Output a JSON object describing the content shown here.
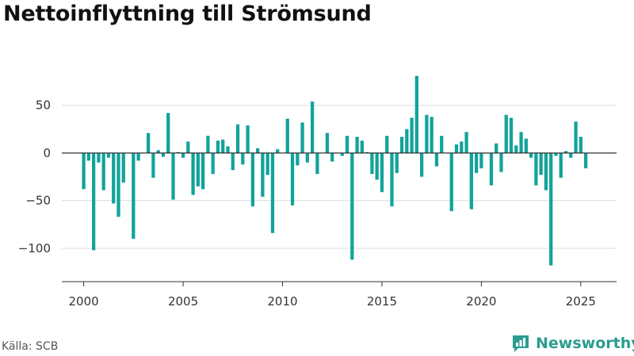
{
  "title": "Nettoinflyttning till Strömsund",
  "source": "Källa: SCB",
  "brand": {
    "name": "Newsworthy",
    "icon": "newsworthy-logo-icon",
    "color": "#2a9d8f"
  },
  "chart_data": {
    "type": "bar",
    "color": "#12a39a",
    "x_ticks": [
      2000,
      2005,
      2010,
      2015,
      2020,
      2025
    ],
    "y_ticks": [
      -100,
      -50,
      0,
      50
    ],
    "y_tick_labels": [
      "−100",
      "−50",
      "0",
      "50"
    ],
    "xlim": [
      1998.9,
      2026.8
    ],
    "ylim": [
      -135,
      90
    ],
    "grid": true,
    "x": [
      2000.0,
      2000.25,
      2000.5,
      2000.75,
      2001.0,
      2001.25,
      2001.5,
      2001.75,
      2002.0,
      2002.25,
      2002.5,
      2002.75,
      2003.0,
      2003.25,
      2003.5,
      2003.75,
      2004.0,
      2004.25,
      2004.5,
      2004.75,
      2005.0,
      2005.25,
      2005.5,
      2005.75,
      2006.0,
      2006.25,
      2006.5,
      2006.75,
      2007.0,
      2007.25,
      2007.5,
      2007.75,
      2008.0,
      2008.25,
      2008.5,
      2008.75,
      2009.0,
      2009.25,
      2009.5,
      2009.75,
      2010.0,
      2010.25,
      2010.5,
      2010.75,
      2011.0,
      2011.25,
      2011.5,
      2011.75,
      2012.0,
      2012.25,
      2012.5,
      2012.75,
      2013.0,
      2013.25,
      2013.5,
      2013.75,
      2014.0,
      2014.25,
      2014.5,
      2014.75,
      2015.0,
      2015.25,
      2015.5,
      2015.75,
      2016.0,
      2016.25,
      2016.5,
      2016.75,
      2017.0,
      2017.25,
      2017.5,
      2017.75,
      2018.0,
      2018.25,
      2018.5,
      2018.75,
      2019.0,
      2019.25,
      2019.5,
      2019.75,
      2020.0,
      2020.25,
      2020.5,
      2020.75,
      2021.0,
      2021.25,
      2021.5,
      2021.75,
      2022.0,
      2022.25,
      2022.5,
      2022.75,
      2023.0,
      2023.25,
      2023.5,
      2023.75,
      2024.0,
      2024.25,
      2024.5,
      2024.75,
      2025.0,
      2025.25
    ],
    "values": [
      -38,
      -8,
      -102,
      -10,
      -39,
      -5,
      -53,
      -67,
      -31,
      0,
      -90,
      -8,
      0,
      21,
      -26,
      3,
      -4,
      42,
      -49,
      1,
      -5,
      12,
      -44,
      -35,
      -38,
      18,
      -22,
      13,
      14,
      7,
      -18,
      30,
      -12,
      29,
      -56,
      5,
      -46,
      -23,
      -84,
      4,
      0,
      36,
      -55,
      -13,
      32,
      -10,
      54,
      -22,
      0,
      21,
      -9,
      0,
      -3,
      18,
      -112,
      17,
      13,
      1,
      -22,
      -28,
      -41,
      18,
      -56,
      -21,
      17,
      25,
      37,
      81,
      -25,
      40,
      38,
      -14,
      18,
      0,
      -61,
      9,
      12,
      22,
      -59,
      -21,
      -16,
      0,
      -34,
      10,
      -20,
      40,
      37,
      8,
      22,
      15,
      -5,
      -34,
      -23,
      -39,
      -118,
      -3,
      -26,
      2,
      -5,
      33,
      17,
      -16
    ]
  }
}
